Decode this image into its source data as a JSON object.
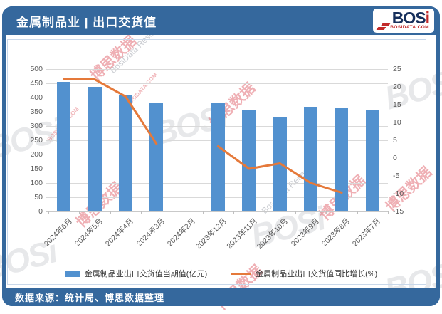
{
  "header": {
    "title": "金属制品业 | 出口交货值",
    "logo": {
      "main": "BOS",
      "accent": "i",
      "sub": "BOSIDATA.COM"
    }
  },
  "footer": {
    "source": "数据来源：统计局、博思数据整理"
  },
  "watermarks": {
    "logo_text": "BOSi",
    "cn": "博思数据",
    "en": "BosiData Research",
    "site": "BOSIDATA.COM"
  },
  "colors": {
    "frame_blue": "#35689D",
    "bar_blue": "#5291CF",
    "line_orange": "#E5793A",
    "grid_gray": "#D9D9D9",
    "axis_text": "#595959",
    "logo_navy": "#17305C",
    "logo_red": "#C22A2A"
  },
  "chart_data": {
    "type": "bar",
    "subtype": "bar+line dual axis",
    "categories": [
      "2024年6月",
      "2024年5月",
      "2024年4月",
      "2024年3月",
      "2024年2月",
      "2023年12月",
      "2023年11月",
      "2023年10月",
      "2023年9月",
      "2023年8月",
      "2023年7月"
    ],
    "series": [
      {
        "name": "金属制品业出口交货值当期值(亿元)",
        "type": "bar",
        "axis": "left",
        "values": [
          455,
          437,
          407,
          382,
          null,
          383,
          354,
          329,
          367,
          364,
          355
        ]
      },
      {
        "name": "金属制品业出口交货值同比增长(%)",
        "type": "line",
        "axis": "right",
        "values": [
          22.3,
          22.1,
          17.3,
          4.0,
          null,
          3.3,
          -3.0,
          -1.5,
          -7.0,
          -9.7,
          null
        ]
      }
    ],
    "left_axis": {
      "min": 0,
      "max": 500,
      "step": 50
    },
    "right_axis": {
      "min": -15,
      "max": 25,
      "step": 5
    },
    "grid": true,
    "legend_position": "bottom",
    "x_label_rotation": -45
  }
}
